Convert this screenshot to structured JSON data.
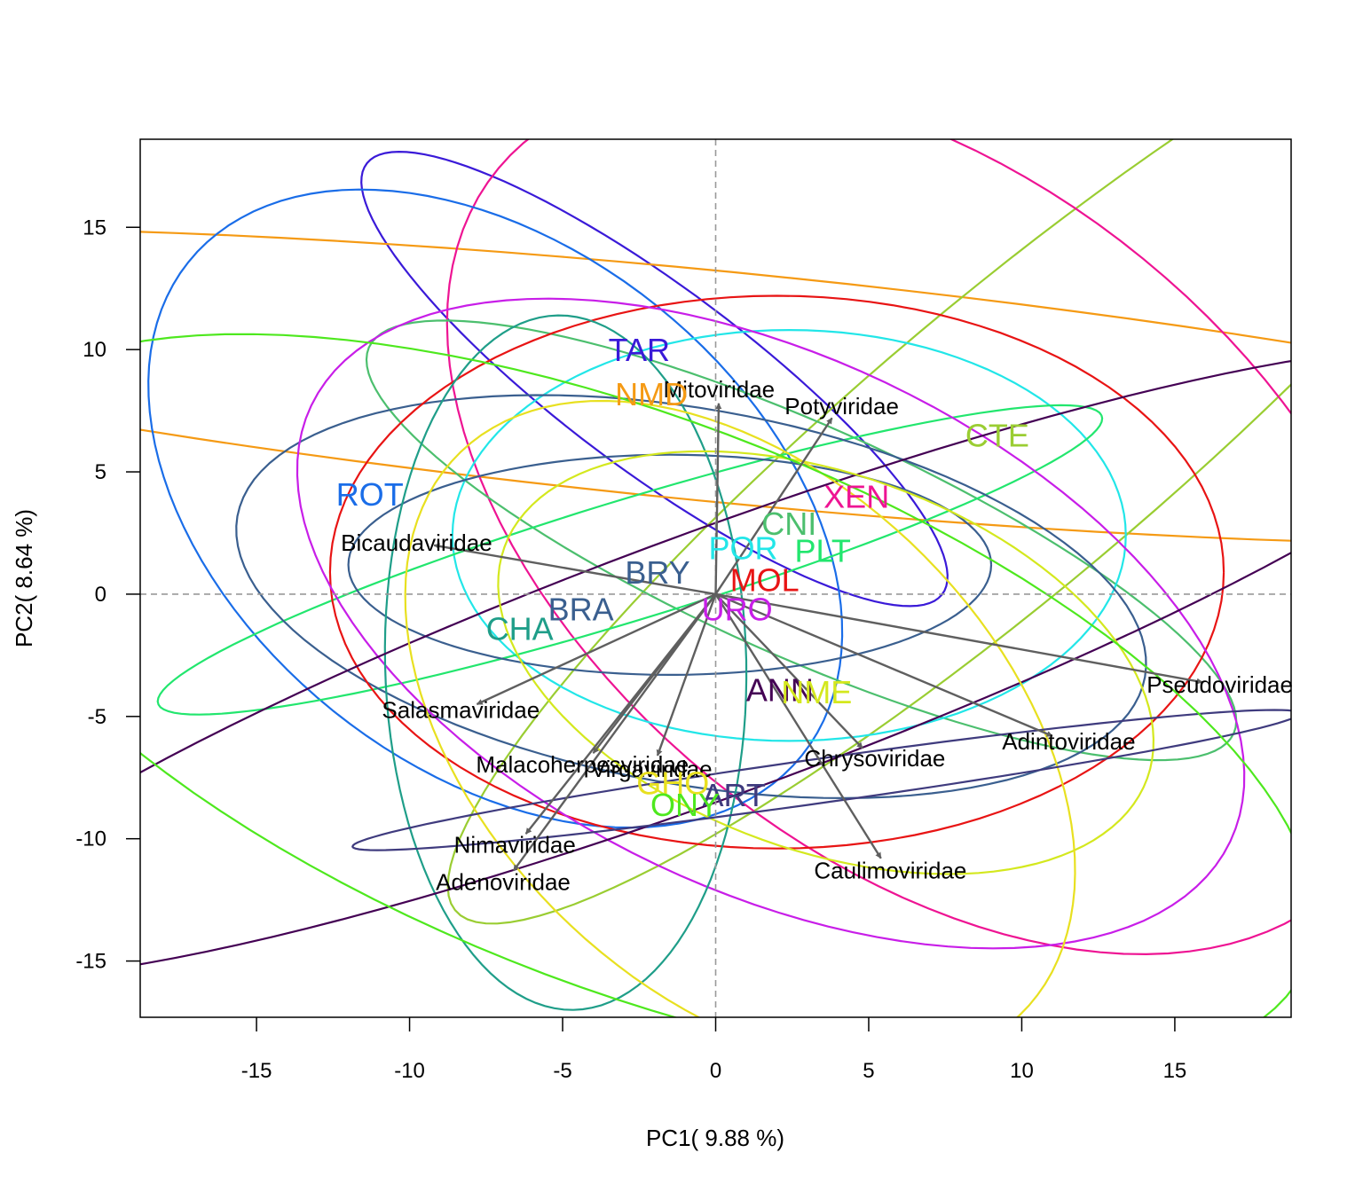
{
  "chart_data": {
    "type": "scatter",
    "title": "",
    "xlabel": "PC1( 9.88 %)",
    "ylabel": "PC2( 8.64 %)",
    "xlim": [
      -18.8,
      18.8
    ],
    "ylim": [
      -17.3,
      18.6
    ],
    "xticks": [
      -15,
      -10,
      -5,
      0,
      5,
      10,
      15
    ],
    "yticks": [
      -15,
      -10,
      -5,
      0,
      5,
      10,
      15
    ],
    "xtick_labels": [
      "-15",
      "-10",
      "-5",
      "0",
      "5",
      "10",
      "15"
    ],
    "ytick_labels": [
      "-15",
      "-10",
      "-5",
      "0",
      "5",
      "10",
      "15"
    ],
    "reference_lines": {
      "x": 0,
      "y": 0,
      "style": "dashed",
      "color": "#999999"
    },
    "arrow_color": "#5f5f5f",
    "loadings": [
      {
        "name": "Mitoviridae",
        "x": 0.1,
        "y": 7.8
      },
      {
        "name": "Potyviridae",
        "x": 3.8,
        "y": 7.2
      },
      {
        "name": "Bicaudaviridae",
        "x": -9.2,
        "y": 2.0
      },
      {
        "name": "Pseudoviridae",
        "x": 15.9,
        "y": -3.6
      },
      {
        "name": "Adintoviridae",
        "x": 11.0,
        "y": -5.8
      },
      {
        "name": "Chrysoviridae",
        "x": 4.8,
        "y": -6.3
      },
      {
        "name": "Caulimoviridae",
        "x": 5.4,
        "y": -10.8
      },
      {
        "name": "Salasmaviridae",
        "x": -7.8,
        "y": -4.5
      },
      {
        "name": "Malacoherpesviridae",
        "x": -4.0,
        "y": -6.5
      },
      {
        "name": "Virgaviridae",
        "x": -1.9,
        "y": -6.6
      },
      {
        "name": "Nimaviridae",
        "x": -6.2,
        "y": -9.8
      },
      {
        "name": "Adenoviridae",
        "x": -6.6,
        "y": -11.3
      }
    ],
    "groups": [
      {
        "name": "TAR",
        "color": "#3a1ad8",
        "x": -2.5,
        "y": 10.0,
        "ellipse": {
          "cx": -2.0,
          "cy": 8.8,
          "a": 12.9,
          "b": 3.4,
          "angle": -44
        }
      },
      {
        "name": "NMD",
        "color": "#f59a14",
        "x": -2.1,
        "y": 8.2,
        "ellipse": {
          "cx": 0.0,
          "cy": 8.5,
          "a": 36.5,
          "b": 4.7,
          "angle": -7
        }
      },
      {
        "name": "CTE",
        "color": "#9acd32",
        "x": 9.2,
        "y": 6.5,
        "ellipse": {
          "cx": 9.6,
          "cy": 6.1,
          "a": 26.3,
          "b": 5.3,
          "angle": 47
        }
      },
      {
        "name": "XEN",
        "color": "#ee1493",
        "x": 4.6,
        "y": 4.0,
        "ellipse": {
          "cx": 6.9,
          "cy": 3.1,
          "a": 20.3,
          "b": 12.3,
          "angle": -53
        }
      },
      {
        "name": "ROT",
        "color": "#1a6de8",
        "x": -11.3,
        "y": 4.1,
        "ellipse": {
          "cx": -7.2,
          "cy": 3.5,
          "a": 14.5,
          "b": 9.4,
          "angle": -55
        }
      },
      {
        "name": "CNI",
        "color": "#4cbf6e",
        "x": 2.4,
        "y": 2.9,
        "ellipse": {
          "cx": 2.8,
          "cy": 2.2,
          "a": 16.2,
          "b": 4.5,
          "angle": -30
        }
      },
      {
        "name": "POR",
        "color": "#22e6e8",
        "x": 0.9,
        "y": 1.9,
        "ellipse": {
          "cx": 2.4,
          "cy": 2.4,
          "a": 11.0,
          "b": 8.4,
          "angle": 0
        }
      },
      {
        "name": "PLT",
        "color": "#22e66e",
        "x": 3.5,
        "y": 1.8,
        "ellipse": {
          "cx": -2.8,
          "cy": 1.4,
          "a": 16.5,
          "b": 2.4,
          "angle": 21
        }
      },
      {
        "name": "BRY",
        "color": "#3a5f8f",
        "x": -1.9,
        "y": 0.9,
        "ellipse": {
          "cx": -0.8,
          "cy": -0.1,
          "a": 15.2,
          "b": 7.6,
          "angle": -14
        }
      },
      {
        "name": "MOL",
        "color": "#e81414",
        "x": 1.6,
        "y": 0.6,
        "ellipse": {
          "cx": 2.0,
          "cy": 0.9,
          "a": 14.6,
          "b": 11.3,
          "angle": 0
        }
      },
      {
        "name": "BRA",
        "color": "#3a5f8f",
        "x": -4.4,
        "y": -0.6,
        "ellipse": {
          "cx": -1.5,
          "cy": 1.2,
          "a": 10.5,
          "b": 4.5,
          "angle": 0
        }
      },
      {
        "name": "URO",
        "color": "#c81ee8",
        "x": 0.7,
        "y": -0.6,
        "ellipse": {
          "cx": 1.8,
          "cy": -1.2,
          "a": 17.6,
          "b": 10.3,
          "angle": -36
        }
      },
      {
        "name": "CHA",
        "color": "#1f9e89",
        "x": -6.4,
        "y": -1.4,
        "ellipse": {
          "cx": -4.9,
          "cy": -2.8,
          "a": 14.2,
          "b": 5.9,
          "angle": -89
        }
      },
      {
        "name": "ANN",
        "color": "#440154",
        "x": 2.1,
        "y": -3.9,
        "ellipse": {
          "cx": 0.0,
          "cy": -2.8,
          "a": 28.4,
          "b": 5.2,
          "angle": 25
        }
      },
      {
        "name": "NME",
        "color": "#d4e81e",
        "x": 3.3,
        "y": -4.0,
        "ellipse": {
          "cx": 3.6,
          "cy": -2.8,
          "a": 11.6,
          "b": 7.4,
          "angle": -30
        }
      },
      {
        "name": "GHO",
        "color": "#e8e020",
        "x": -1.4,
        "y": -7.7,
        "ellipse": {
          "cx": 0.8,
          "cy": -5.7,
          "a": 14.9,
          "b": 9.1,
          "angle": -59
        }
      },
      {
        "name": "ART",
        "color": "#3f3b7e",
        "x": 0.6,
        "y": -8.2,
        "ellipse": {
          "cx": 3.6,
          "cy": -7.6,
          "a": 15.7,
          "b": 0.9,
          "angle": 10
        }
      },
      {
        "name": "ONY",
        "color": "#4ee81e",
        "x": -1.0,
        "y": -8.6,
        "ellipse": {
          "cx": -2.6,
          "cy": -4.5,
          "a": 24.4,
          "b": 11.2,
          "angle": -28
        }
      }
    ]
  }
}
